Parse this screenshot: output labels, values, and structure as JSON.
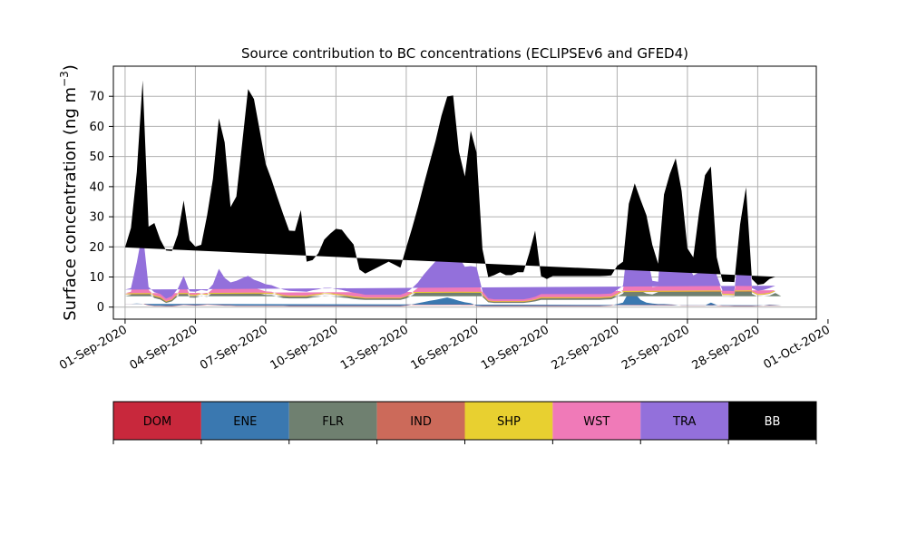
{
  "chart_data": {
    "type": "area",
    "stacked": true,
    "title": "Source contribution to BC concentrations (ECLIPSEv6 and GFED4)",
    "ylabel": "Surface concentration (ng m⁻³)",
    "ylabel_text": "Surface concentration (ng m",
    "ylabel_sup": "−3",
    "ylabel_close": ")",
    "xlabel": "",
    "x_start": "2020-09-01",
    "xlim_days": [
      -0.5,
      29.5
    ],
    "ylim": [
      -4,
      80
    ],
    "yticks": [
      0,
      10,
      20,
      30,
      40,
      50,
      60,
      70
    ],
    "xticks": [
      {
        "day": 0,
        "label": "01-Sep-2020"
      },
      {
        "day": 3,
        "label": "04-Sep-2020"
      },
      {
        "day": 6,
        "label": "07-Sep-2020"
      },
      {
        "day": 9,
        "label": "10-Sep-2020"
      },
      {
        "day": 12,
        "label": "13-Sep-2020"
      },
      {
        "day": 15,
        "label": "16-Sep-2020"
      },
      {
        "day": 18,
        "label": "19-Sep-2020"
      },
      {
        "day": 21,
        "label": "22-Sep-2020"
      },
      {
        "day": 24,
        "label": "25-Sep-2020"
      },
      {
        "day": 27,
        "label": "28-Sep-2020"
      },
      {
        "day": 30,
        "label": "01-Oct-2020"
      }
    ],
    "grid": true,
    "legend_position": "bottom",
    "x_days": [
      0,
      0.25,
      0.5,
      0.75,
      1,
      1.25,
      1.5,
      1.75,
      2,
      2.25,
      2.5,
      2.75,
      3,
      3.25,
      3.5,
      3.75,
      4,
      4.25,
      4.5,
      4.75,
      5,
      5.25,
      5.5,
      5.75,
      6,
      6.25,
      6.5,
      6.75,
      7,
      7.25,
      7.5,
      7.75,
      8,
      8.25,
      8.5,
      8.75,
      9,
      9.25,
      9.5,
      9.75,
      10,
      10.25,
      10.5,
      10.75,
      11,
      11.25,
      11.5,
      11.75,
      12,
      12.25,
      12.5,
      12.75,
      13,
      13.25,
      13.5,
      13.75,
      14,
      14.25,
      14.5,
      14.75,
      15,
      15.25,
      15.5,
      15.75,
      16,
      16.25,
      16.5,
      16.75,
      17,
      17.25,
      17.5,
      17.75,
      18,
      18.25,
      18.5,
      18.75,
      19,
      19.25,
      19.5,
      19.75,
      20,
      20.25,
      20.5,
      20.75,
      21,
      21.25,
      21.5,
      21.75,
      22,
      22.25,
      22.5,
      22.75,
      23,
      23.25,
      23.5,
      23.75,
      24,
      24.25,
      24.5,
      24.75,
      25,
      25.25,
      25.5,
      25.75,
      26,
      26.25,
      26.5,
      26.75,
      27,
      27.25,
      27.5,
      27.75,
      28,
      28.25,
      28.5,
      28.75,
      29,
      29.25
    ],
    "series": [
      {
        "name": "DOM",
        "color": "#c8283c",
        "values": [
          1,
          1,
          1,
          1,
          0.6,
          0.4,
          0.4,
          0.3,
          0.3,
          0.5,
          0.7,
          0.6,
          0.5,
          0.6,
          0.8,
          0.7,
          0.6,
          0.5,
          0.5,
          0.4,
          0.4,
          0.4,
          0.4,
          0.4,
          0.4,
          0.4,
          0.4,
          0.4,
          0.3,
          0.3,
          0.3,
          0.3,
          0.3,
          0.3,
          0.3,
          0.3,
          0.3,
          0.3,
          0.3,
          0.3,
          0.3,
          0.3,
          0.3,
          0.3,
          0.3,
          0.3,
          0.3,
          0.3,
          0.5,
          0.8,
          1.2,
          1.6,
          2,
          2.3,
          2.6,
          3,
          2.5,
          2,
          1.5,
          1.2,
          0.4,
          0.3,
          0.3,
          0.3,
          0.3,
          0.3,
          0.3,
          0.3,
          0.3,
          0.3,
          0.3,
          0.3,
          0.3,
          0.3,
          0.3,
          0.3,
          0.3,
          0.3,
          0.3,
          0.3,
          0.3,
          0.3,
          0.4,
          0.5,
          0.8,
          1.2,
          4.5,
          4,
          2,
          1.2,
          1,
          0.8,
          0.8,
          0.7,
          0.6,
          0.5,
          0.5,
          0.5,
          0.5,
          0.5,
          0.7,
          0.5,
          0.4,
          0.4,
          0.3,
          0.3,
          0.3,
          0.3,
          0.4,
          0.5,
          0.7,
          0.6,
          0.5,
          0.5
        ]
      },
      {
        "name": "ENE",
        "color": "#3a78b0",
        "values": [
          0.1,
          0.1,
          0.2,
          0.1,
          0.1,
          0.1,
          0.1,
          0.1,
          0.1,
          0.1,
          0.1,
          0.1,
          0.1,
          0.1,
          0.1,
          0.1,
          0.1,
          0.1,
          0.1,
          0.1,
          0.1,
          0.1,
          0.1,
          0.1,
          0.1,
          0.1,
          0.1,
          0.1,
          0.1,
          0.1,
          0.1,
          0.1,
          0.1,
          0.1,
          0.1,
          0.1,
          0.1,
          0.1,
          0.1,
          0.1,
          0.1,
          0.1,
          0.1,
          0.1,
          0.1,
          0.1,
          0.1,
          0.1,
          0.1,
          0.1,
          0.1,
          0.1,
          0.1,
          0.1,
          0.2,
          0.2,
          0.2,
          0.1,
          0.1,
          0.1,
          0.1,
          0.1,
          0.1,
          0.1,
          0.1,
          0.1,
          0.1,
          0.1,
          0.1,
          0.1,
          0.1,
          0.1,
          0.1,
          0.1,
          0.1,
          0.1,
          0.1,
          0.1,
          0.1,
          0.1,
          0.1,
          0.1,
          0.1,
          0.1,
          0.2,
          0.3,
          0.5,
          0.6,
          0.4,
          0.3,
          0.2,
          0.2,
          0.2,
          0.2,
          0.2,
          0.1,
          0.1,
          0.1,
          0.1,
          0.1,
          0.8,
          0.2,
          0.1,
          0.1,
          0.1,
          0.1,
          0.1,
          0.1,
          0.1,
          0.1,
          0.1,
          0.1,
          0.1,
          0.1
        ]
      },
      {
        "name": "FLR",
        "color": "#6f8070",
        "values": [
          2.5,
          3,
          10,
          18,
          4,
          2.5,
          2,
          1,
          1.5,
          3,
          6,
          2.5,
          2.5,
          3,
          2.5,
          4,
          7.5,
          5,
          4,
          4.5,
          5,
          5.5,
          4.5,
          4,
          3.5,
          3.5,
          3,
          2.5,
          2.5,
          2.5,
          2.5,
          2.5,
          2.8,
          3,
          3.3,
          3.2,
          3,
          2.8,
          2.6,
          2.3,
          2.1,
          2,
          2,
          2,
          2,
          2,
          2,
          2,
          2.3,
          3,
          4,
          5.5,
          7,
          8,
          10,
          10.5,
          10,
          9.5,
          7.5,
          8,
          8.5,
          3,
          1.2,
          1,
          1,
          1,
          1,
          1,
          1,
          1.2,
          1.5,
          2,
          2,
          2,
          2,
          2,
          2,
          2,
          2,
          2,
          2,
          2,
          2,
          2,
          2.5,
          3,
          3,
          3,
          3,
          3,
          3,
          4,
          28,
          33,
          36,
          30,
          12,
          8,
          9,
          14,
          20,
          8,
          3,
          3,
          3,
          20,
          35,
          4,
          3,
          3,
          3,
          4,
          3,
          3,
          3,
          4,
          5,
          4.5
        ]
      },
      {
        "name": "IND",
        "color": "#cc6a5a",
        "values": [
          0.6,
          0.6,
          1,
          1.5,
          0.6,
          0.5,
          0.5,
          0.3,
          0.4,
          0.6,
          1,
          0.6,
          0.6,
          0.6,
          0.6,
          0.8,
          1.3,
          1,
          0.9,
          0.9,
          1,
          1,
          0.9,
          0.8,
          0.7,
          0.7,
          0.6,
          0.6,
          0.5,
          0.5,
          0.5,
          0.5,
          0.6,
          0.6,
          0.7,
          0.7,
          0.6,
          0.6,
          0.5,
          0.5,
          0.5,
          0.4,
          0.4,
          0.4,
          0.4,
          0.4,
          0.4,
          0.4,
          0.5,
          0.6,
          0.7,
          0.9,
          1,
          1.2,
          1.5,
          1.5,
          1.4,
          1.3,
          1.2,
          1.2,
          1.2,
          0.5,
          0.3,
          0.3,
          0.3,
          0.3,
          0.3,
          0.3,
          0.3,
          0.3,
          0.4,
          0.5,
          0.5,
          0.5,
          0.5,
          0.5,
          0.5,
          0.5,
          0.5,
          0.5,
          0.5,
          0.5,
          0.5,
          0.5,
          0.6,
          0.7,
          9,
          12,
          10,
          7,
          2,
          1.5,
          1.5,
          1.8,
          2,
          1,
          0.5,
          0.5,
          0.5,
          1.2,
          1.5,
          0.5,
          0.5,
          0.5,
          0.5,
          0.5,
          0.5,
          0.5,
          0.5,
          0.5,
          0.6,
          0.5
        ]
      },
      {
        "name": "SHP",
        "color": "#e8d030",
        "values": [
          0.1,
          0.1,
          0.1,
          0.1,
          0.1,
          0.1,
          0.1,
          0.1,
          0.1,
          0.1,
          0.1,
          0.1,
          0.1,
          0.1,
          0.1,
          0.1,
          0.1,
          0.1,
          0.1,
          0.1,
          0.1,
          0.1,
          0.1,
          0.1,
          0.1,
          0.1,
          0.1,
          0.1,
          0.1,
          0.1,
          0.1,
          0.1,
          0.1,
          0.1,
          0.1,
          0.1,
          0.1,
          0.1,
          0.1,
          0.1,
          0.1,
          0.1,
          0.1,
          0.1,
          0.1,
          0.1,
          0.1,
          0.1,
          0.1,
          0.1,
          0.1,
          0.1,
          0.1,
          0.1,
          0.1,
          0.1,
          0.1,
          0.1,
          0.1,
          0.1,
          0.1,
          0.1,
          0.1,
          0.1,
          0.1,
          0.1,
          0.1,
          0.1,
          0.1,
          0.1,
          0.1,
          0.1,
          0.1,
          0.1,
          0.1,
          0.1,
          0.1,
          0.1,
          0.1,
          0.1,
          0.1,
          0.1,
          0.1,
          0.1,
          0.1,
          0.1,
          0.3,
          0.3,
          0.2,
          0.2,
          0.1,
          0.1,
          0.1,
          0.1,
          0.1,
          0.1,
          0.1,
          0.1,
          0.1,
          0.1,
          0.1,
          0.1,
          0.1,
          0.1,
          0.1,
          0.1,
          0.1,
          0.1,
          0.1,
          0.1,
          0.1,
          0.1,
          0.1,
          0.1
        ]
      },
      {
        "name": "WST",
        "color": "#f07ab8",
        "values": [
          0.3,
          0.3,
          0.5,
          0.6,
          0.3,
          0.3,
          0.3,
          0.2,
          0.2,
          0.3,
          0.5,
          0.3,
          0.3,
          0.3,
          0.3,
          0.4,
          0.6,
          0.5,
          0.4,
          0.4,
          0.5,
          0.5,
          0.4,
          0.4,
          0.4,
          0.3,
          0.3,
          0.3,
          0.3,
          0.3,
          0.3,
          0.3,
          0.3,
          0.3,
          0.3,
          0.3,
          0.3,
          0.3,
          0.3,
          0.3,
          0.3,
          0.2,
          0.2,
          0.2,
          0.2,
          0.2,
          0.2,
          0.2,
          0.2,
          0.3,
          0.3,
          0.4,
          0.4,
          0.5,
          0.6,
          0.6,
          0.6,
          0.6,
          0.5,
          0.5,
          0.5,
          0.3,
          0.2,
          0.2,
          0.2,
          0.2,
          0.2,
          0.2,
          0.2,
          0.2,
          0.2,
          0.3,
          0.3,
          0.3,
          0.3,
          0.3,
          0.3,
          0.3,
          0.3,
          0.3,
          0.3,
          0.3,
          0.3,
          0.3,
          0.3,
          0.4,
          1,
          1.2,
          1,
          0.8,
          0.4,
          0.3,
          0.3,
          0.4,
          0.5,
          0.3,
          0.3,
          0.3,
          0.3,
          0.4,
          0.6,
          0.3,
          0.3,
          0.3,
          0.3,
          0.3,
          0.3,
          0.3,
          0.3,
          0.3,
          0.3,
          0.3,
          0.3,
          0.3
        ]
      },
      {
        "name": "TRA",
        "color": "#9370db",
        "values": [
          1.2,
          1.2,
          2,
          4,
          1,
          1,
          1,
          0.8,
          1,
          1.5,
          2,
          1,
          1,
          1,
          1,
          1.5,
          2.5,
          2.5,
          2.2,
          2.3,
          2.5,
          2.8,
          2.7,
          2.6,
          2.4,
          2.2,
          2,
          1.8,
          1.6,
          1.5,
          1.4,
          1.3,
          1.4,
          1.5,
          1.6,
          1.7,
          1.6,
          1.5,
          1.3,
          1.2,
          1.1,
          1,
          1,
          1,
          1,
          1,
          1,
          1,
          1.1,
          1.4,
          1.8,
          2.2,
          2.5,
          3,
          3.5,
          4,
          3.5,
          3,
          2.5,
          2.5,
          2.5,
          1,
          0.7,
          0.6,
          0.6,
          0.6,
          0.6,
          0.6,
          0.6,
          0.7,
          0.8,
          1,
          1,
          1,
          1,
          1,
          1,
          1,
          1,
          1,
          1,
          1,
          1,
          1,
          1.2,
          1.4,
          6,
          8,
          7,
          6,
          2,
          1.5,
          1.5,
          2,
          3,
          1.5,
          1,
          1,
          1,
          2.5,
          3,
          1,
          1,
          1,
          1,
          1.2,
          1,
          1,
          1,
          1.2,
          1.5,
          1.5
        ]
      },
      {
        "name": "BB",
        "color": "#000000",
        "values": [
          14,
          20,
          30,
          50,
          20,
          23,
          18,
          16,
          15,
          18,
          25,
          17,
          15,
          15,
          25,
          35,
          50,
          45,
          25,
          28,
          45,
          62,
          60,
          50,
          40,
          35,
          30,
          25,
          20,
          20,
          27,
          10,
          10,
          12,
          16,
          18,
          20,
          20,
          18,
          16,
          8,
          7,
          8,
          9,
          10,
          11,
          10,
          9,
          15,
          20,
          25,
          30,
          35,
          40,
          45,
          50,
          52,
          35,
          30,
          45,
          38,
          14,
          7,
          8,
          9,
          8,
          8,
          9,
          9,
          15,
          22,
          6,
          5,
          6,
          6,
          6,
          6,
          6,
          6,
          6,
          6,
          6,
          6,
          6,
          8,
          8,
          10,
          12,
          12,
          12,
          12,
          6,
          5,
          6,
          7,
          5,
          5,
          6,
          20,
          25,
          20,
          6,
          3,
          3,
          3,
          5,
          2.5,
          3,
          2,
          2,
          3,
          3,
          2,
          3,
          3,
          4,
          6,
          3
        ]
      }
    ]
  }
}
